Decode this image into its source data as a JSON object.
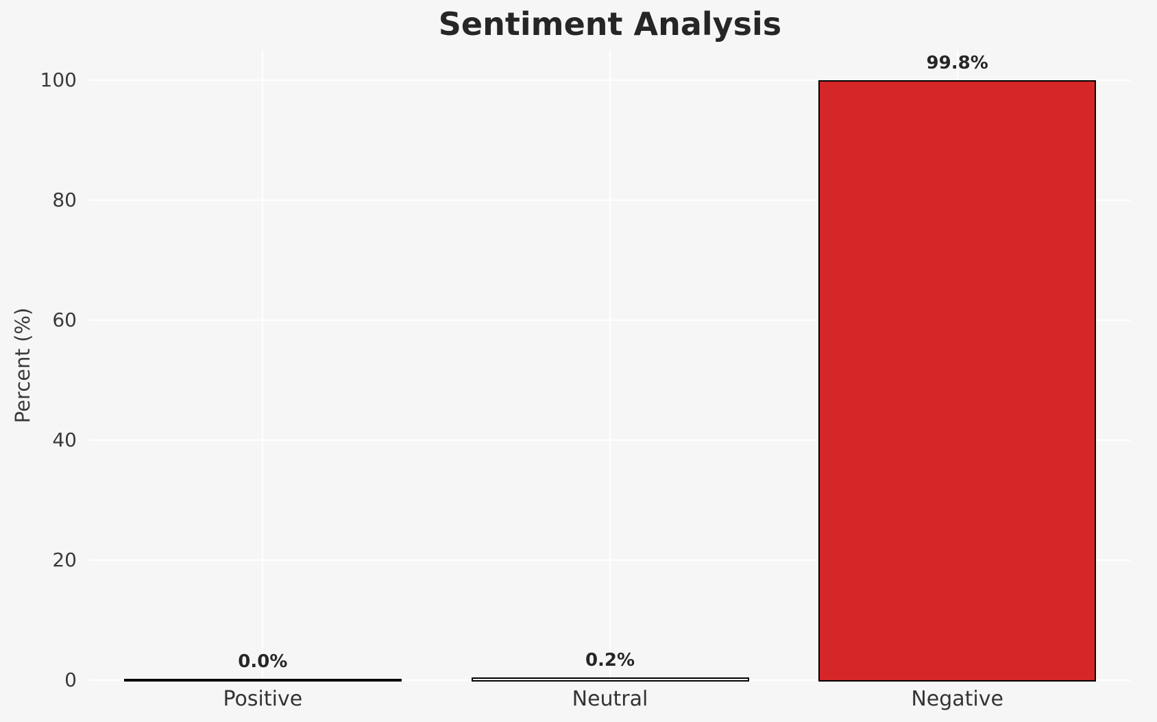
{
  "figure": {
    "background_color": "#f6f6f6",
    "gridline_color": "#ffffff"
  },
  "chart_data": {
    "type": "bar",
    "title": "Sentiment Analysis",
    "xlabel": "",
    "ylabel": "Percent (%)",
    "categories": [
      "Positive",
      "Neutral",
      "Negative"
    ],
    "values": [
      0.0,
      0.2,
      99.8
    ],
    "bar_labels": [
      "0.0%",
      "0.2%",
      "99.8%"
    ],
    "bar_fill_colors": [
      "none",
      "none",
      "#d62728"
    ],
    "bar_edge_color": "#000000",
    "yticks": [
      0,
      20,
      40,
      60,
      80,
      100
    ],
    "ytick_labels": [
      "0",
      "20",
      "40",
      "60",
      "80",
      "100"
    ],
    "ylim": [
      0,
      105
    ],
    "grid": true,
    "legend": false
  }
}
